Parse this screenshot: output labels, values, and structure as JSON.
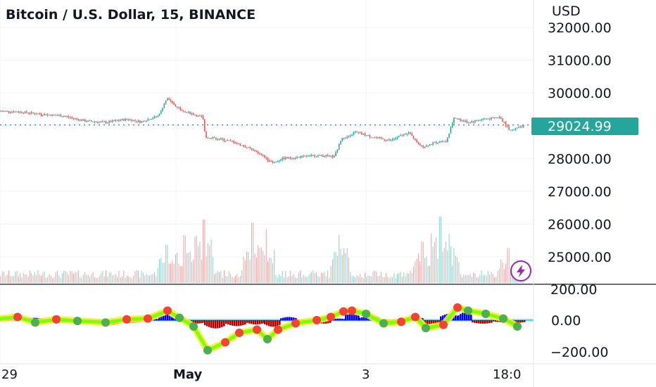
{
  "header": {
    "title": "Bitcoin / U.S. Dollar, 15, BINANCE"
  },
  "price_axis": {
    "currency": "USD",
    "last_price": "29024.99",
    "last_price_color": "#26a69a"
  },
  "indicator_axis": {
    "ticks": [
      "200.00",
      "0.00",
      "−200.00"
    ]
  },
  "time_axis": {
    "labels": [
      "29",
      "May",
      "3",
      "18:0"
    ]
  },
  "icons": {
    "lightning": "lightning-icon"
  },
  "colors": {
    "up": "#26a69a",
    "down": "#ef5350",
    "hist_pos": "#0000ff",
    "hist_neg": "#b00000",
    "grid": "#f0f3fa",
    "dotted_line": "#26a69a"
  },
  "chart_data": [
    {
      "type": "candlestick",
      "title": "Bitcoin / U.S. Dollar, 15, BINANCE",
      "ylabel": "USD",
      "yticks": [
        "32000.00",
        "31000.00",
        "30000.00",
        "29000.00",
        "28000.00",
        "27000.00",
        "26000.00",
        "25000.00"
      ],
      "ylim": [
        24700,
        32400
      ],
      "last_price": 29024.99,
      "x_tick_labels": [
        "29",
        "May",
        "3",
        "18:0"
      ],
      "grid": true,
      "price_path": [
        [
          0,
          29450
        ],
        [
          30,
          29420
        ],
        [
          60,
          29350
        ],
        [
          90,
          29300
        ],
        [
          120,
          29150
        ],
        [
          150,
          29100
        ],
        [
          180,
          29200
        ],
        [
          200,
          29120
        ],
        [
          225,
          29300
        ],
        [
          237,
          29830
        ],
        [
          250,
          29600
        ],
        [
          262,
          29450
        ],
        [
          275,
          29350
        ],
        [
          288,
          29250
        ],
        [
          292,
          28650
        ],
        [
          310,
          28600
        ],
        [
          330,
          28520
        ],
        [
          355,
          28300
        ],
        [
          375,
          28050
        ],
        [
          388,
          27850
        ],
        [
          400,
          28000
        ],
        [
          430,
          28050
        ],
        [
          450,
          28100
        ],
        [
          475,
          28050
        ],
        [
          485,
          28600
        ],
        [
          505,
          28800
        ],
        [
          530,
          28650
        ],
        [
          555,
          28550
        ],
        [
          580,
          28800
        ],
        [
          600,
          28350
        ],
        [
          620,
          28500
        ],
        [
          635,
          28550
        ],
        [
          645,
          29250
        ],
        [
          665,
          29100
        ],
        [
          685,
          29200
        ],
        [
          710,
          29250
        ],
        [
          725,
          28850
        ],
        [
          745,
          29000
        ]
      ],
      "volume_panel": {
        "baseline": "flat with spikes",
        "spike_values": [
          [
            237,
            1200
          ],
          [
            262,
            1500
          ],
          [
            290,
            2000
          ],
          [
            358,
            1900
          ],
          [
            378,
            1700
          ],
          [
            482,
            1500
          ],
          [
            600,
            1300
          ],
          [
            625,
            2100
          ],
          [
            638,
            1550
          ],
          [
            722,
            1100
          ]
        ]
      }
    },
    {
      "type": "line",
      "title": "",
      "ylim": [
        -230,
        210
      ],
      "yticks": [
        "200.00",
        "0.00",
        "−200.00"
      ],
      "series": [
        {
          "values": [
            [
              0,
              10
            ],
            [
              25,
              20
            ],
            [
              50,
              -15
            ],
            [
              80,
              5
            ],
            [
              110,
              -5
            ],
            [
              150,
              -15
            ],
            [
              180,
              5
            ],
            [
              210,
              10
            ],
            [
              238,
              60
            ],
            [
              255,
              15
            ],
            [
              275,
              -40
            ],
            [
              295,
              -190
            ],
            [
              320,
              -140
            ],
            [
              340,
              -80
            ],
            [
              365,
              -60
            ],
            [
              380,
              -120
            ],
            [
              395,
              -60
            ],
            [
              420,
              -20
            ],
            [
              450,
              0
            ],
            [
              470,
              20
            ],
            [
              488,
              55
            ],
            [
              500,
              60
            ],
            [
              520,
              40
            ],
            [
              545,
              -20
            ],
            [
              570,
              -10
            ],
            [
              590,
              20
            ],
            [
              605,
              -50
            ],
            [
              630,
              -30
            ],
            [
              650,
              80
            ],
            [
              665,
              60
            ],
            [
              690,
              40
            ],
            [
              715,
              10
            ],
            [
              735,
              -40
            ]
          ]
        }
      ],
      "histogram": [
        [
          0,
          20
        ],
        [
          35,
          15
        ],
        [
          60,
          -15
        ],
        [
          100,
          0
        ],
        [
          140,
          -30
        ],
        [
          170,
          -15
        ],
        [
          200,
          10
        ],
        [
          225,
          35
        ],
        [
          245,
          25
        ],
        [
          262,
          -20
        ],
        [
          290,
          -50
        ],
        [
          320,
          -35
        ],
        [
          350,
          -25
        ],
        [
          375,
          -40
        ],
        [
          398,
          20
        ],
        [
          420,
          -10
        ],
        [
          450,
          -20
        ],
        [
          470,
          10
        ],
        [
          490,
          60
        ],
        [
          510,
          25
        ],
        [
          540,
          -10
        ],
        [
          575,
          20
        ],
        [
          600,
          -25
        ],
        [
          625,
          40
        ],
        [
          650,
          50
        ],
        [
          670,
          -20
        ],
        [
          700,
          -10
        ],
        [
          720,
          -15
        ]
      ]
    }
  ]
}
